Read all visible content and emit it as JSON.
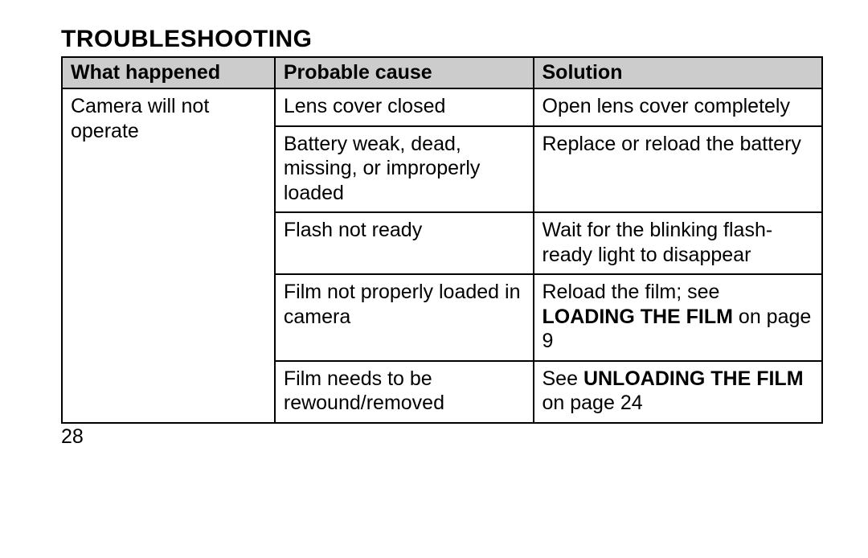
{
  "title": "TROUBLESHOOTING",
  "headers": {
    "c1": "What happened",
    "c2": "Probable cause",
    "c3": "Solution"
  },
  "problem": "Camera will not  operate",
  "rows": [
    {
      "cause": "Lens cover closed",
      "solution_plain": "Open lens cover completely"
    },
    {
      "cause": "Battery weak, dead, missing, or improperly loaded",
      "solution_plain": "Replace or reload the battery"
    },
    {
      "cause": "Flash not ready",
      "solution_plain": "Wait for the blinking flash-ready light to disappear"
    },
    {
      "cause": "Film not properly loaded in camera",
      "solution_pre": "Reload the film; see ",
      "solution_bold": "LOADING THE FILM",
      "solution_post": " on page 9"
    },
    {
      "cause": "Film needs to be rewound/removed",
      "solution_pre": "See ",
      "solution_bold": "UNLOADING THE FILM",
      "solution_post": " on page 24"
    }
  ],
  "pagenum": "28",
  "colors": {
    "header_bg": "#cccccc",
    "border": "#000000",
    "text": "#000000",
    "background": "#ffffff"
  },
  "font_sizes": {
    "title": 30,
    "body": 25
  }
}
